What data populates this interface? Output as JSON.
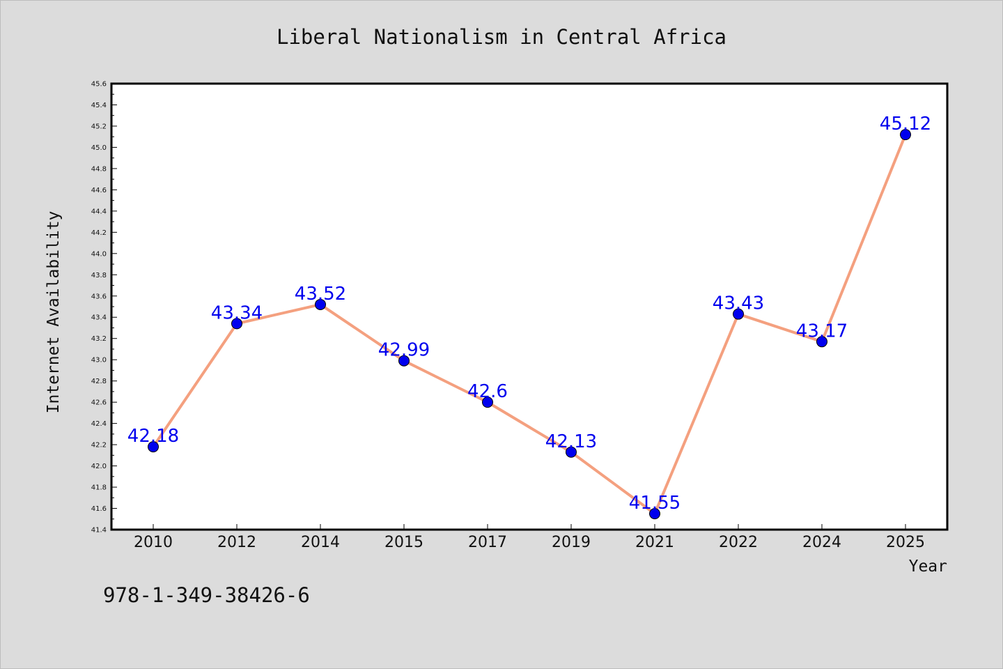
{
  "chart_data": {
    "type": "line",
    "title": "Liberal Nationalism in Central Africa",
    "xlabel": "Year",
    "ylabel": "Internet Availability",
    "categories": [
      "2010",
      "2012",
      "2014",
      "2015",
      "2017",
      "2019",
      "2021",
      "2022",
      "2024",
      "2025"
    ],
    "series": [
      {
        "values": [
          42.18,
          43.34,
          43.52,
          42.99,
          42.6,
          42.13,
          41.55,
          43.43,
          43.17,
          45.12
        ],
        "labels": [
          "42.18",
          "43.34",
          "43.52",
          "42.99",
          "42.6",
          "42.13",
          "41.55",
          "43.43",
          "43.17",
          "45.12"
        ]
      }
    ],
    "ylim": [
      41.4,
      45.6
    ],
    "yticks": [
      "41.4",
      "41.6",
      "41.8",
      "42.0",
      "42.2",
      "42.4",
      "42.6",
      "42.8",
      "43.0",
      "43.2",
      "43.4",
      "43.6",
      "43.8",
      "44.0",
      "44.2",
      "44.4",
      "44.6",
      "44.8",
      "45.0",
      "45.2",
      "45.4",
      "45.6"
    ],
    "grid": false,
    "legend": "none",
    "colors": {
      "line": "#f4a07f",
      "marker": "#0000ee",
      "label": "#0000ee",
      "background": "#dcdcdc",
      "plot_background": "#ffffff"
    }
  },
  "footer": {
    "isbn": "978-1-349-38426-6"
  }
}
